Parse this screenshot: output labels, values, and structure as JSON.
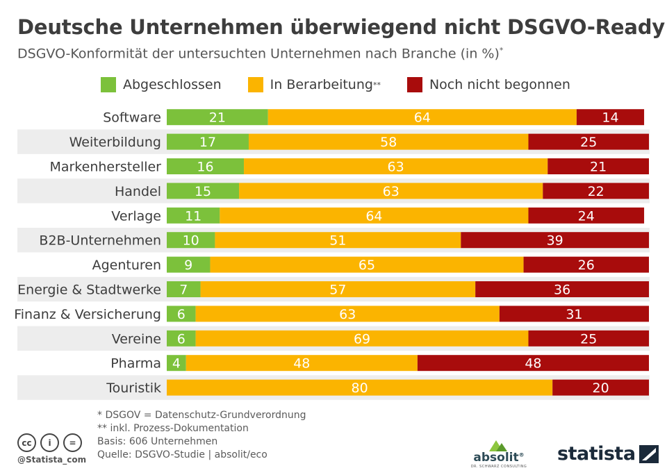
{
  "title": "Deutsche Unternehmen überwiegend nicht DSGVO-Ready",
  "subtitle": "DSGVO-Konformität der untersuchten Unternehmen nach Branche (in %)",
  "subtitle_mark": "*",
  "colors": {
    "abgeschlossen": "#7cc13b",
    "bearbeitung": "#fbb400",
    "nicht": "#a80c0c",
    "row_band": "#ededed",
    "text": "#3c3c3c"
  },
  "legend": [
    {
      "label": "Abgeschlossen",
      "mark": ""
    },
    {
      "label": "In Berarbeitung",
      "mark": "**"
    },
    {
      "label": "Noch nicht begonnen",
      "mark": ""
    }
  ],
  "chart_data": {
    "type": "bar",
    "orientation": "horizontal",
    "stacked": true,
    "title": "Deutsche Unternehmen überwiegend nicht DSGVO-Ready",
    "subtitle": "DSGVO-Konformität der untersuchten Unternehmen nach Branche (in %)",
    "xlabel": "",
    "ylabel": "",
    "xlim": [
      0,
      100
    ],
    "unit": "%",
    "categories": [
      "Software",
      "Weiterbildung",
      "Markenhersteller",
      "Handel",
      "Verlage",
      "B2B-Unternehmen",
      "Agenturen",
      "Energie & Stadtwerke",
      "Finanz & Versicherung",
      "Vereine",
      "Pharma",
      "Touristik"
    ],
    "series": [
      {
        "name": "Abgeschlossen",
        "values": [
          21,
          17,
          16,
          15,
          11,
          10,
          9,
          7,
          6,
          6,
          4,
          0
        ]
      },
      {
        "name": "In Berarbeitung",
        "values": [
          64,
          58,
          63,
          63,
          64,
          51,
          65,
          57,
          63,
          69,
          48,
          80
        ]
      },
      {
        "name": "Noch nicht begonnen",
        "values": [
          14,
          25,
          21,
          22,
          24,
          39,
          26,
          36,
          31,
          25,
          48,
          20
        ]
      }
    ],
    "legend_position": "top",
    "grid": false
  },
  "footnotes": [
    "*   DSGOV = Datenschutz-Grundverordnung",
    "** inkl. Prozess-Dokumentation",
    "Basis: 606 Unternehmen",
    "Quelle: DSGVO-Studie | absolit/eco"
  ],
  "license_icons": [
    {
      "name": "cc-icon",
      "glyph": "cc"
    },
    {
      "name": "by-icon",
      "glyph": "i"
    },
    {
      "name": "nd-icon",
      "glyph": "="
    }
  ],
  "handle": "@Statista_com",
  "logos": {
    "absolit": "absolit",
    "absolit_reg": "®",
    "absolit_sub": "DR. SCHWARZ CONSULTING",
    "statista": "statista"
  }
}
